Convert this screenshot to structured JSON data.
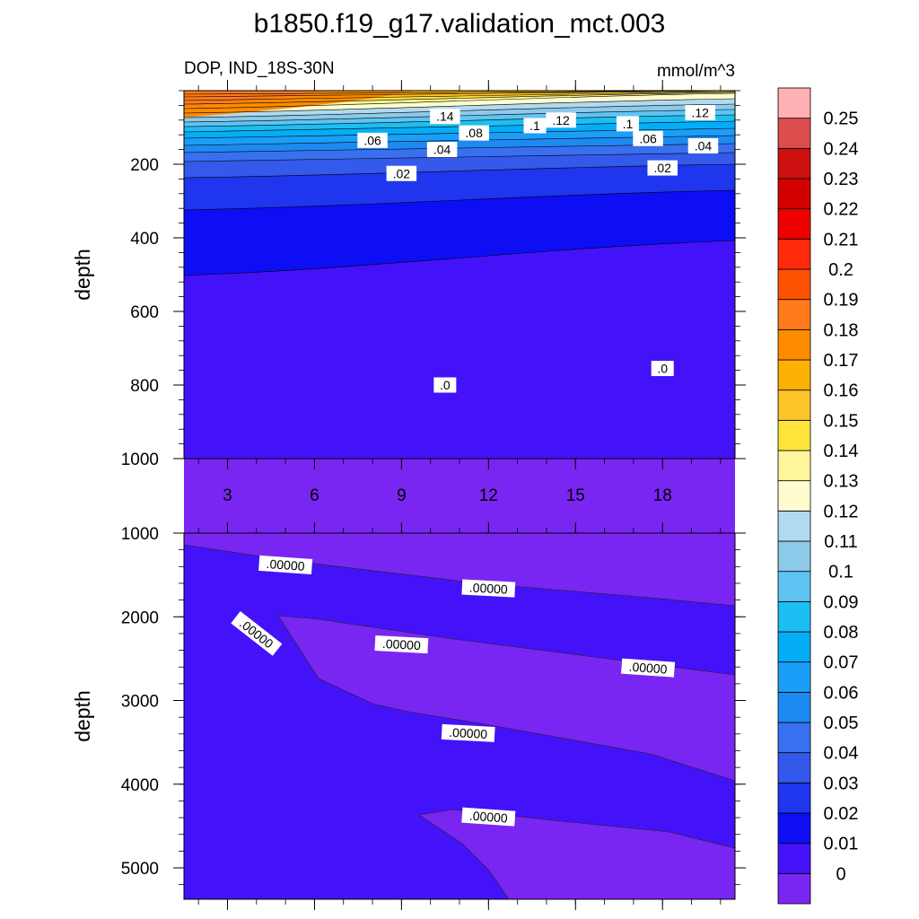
{
  "title": "b1850.f19_g17.validation_mct.003",
  "colorbar": {
    "levels": [
      0,
      0.01,
      0.02,
      0.03,
      0.04,
      0.05,
      0.06,
      0.07,
      0.08,
      0.09,
      0.1,
      0.11,
      0.12,
      0.13,
      0.14,
      0.15,
      0.16,
      0.17,
      0.18,
      0.19,
      0.2,
      0.21,
      0.22,
      0.23,
      0.24,
      0.25
    ],
    "labels": [
      "0",
      "0.01",
      "0.02",
      "0.03",
      "0.04",
      "0.05",
      "0.06",
      "0.07",
      "0.08",
      "0.09",
      "0.1",
      "0.11",
      "0.12",
      "0.13",
      "0.14",
      "0.15",
      "0.16",
      "0.17",
      "0.18",
      "0.19",
      "0.2",
      "0.21",
      "0.22",
      "0.23",
      "0.24",
      "0.25"
    ],
    "colors": [
      "#7a26f2",
      "#4412f8",
      "#0e0ef5",
      "#1f35ee",
      "#3559ea",
      "#3870ef",
      "#1d8af2",
      "#1b9ef8",
      "#05adf7",
      "#1dbef2",
      "#5ec4f3",
      "#8dcaea",
      "#b1daf0",
      "#fffdd0",
      "#fff59a",
      "#ffe43b",
      "#fec52a",
      "#fdb104",
      "#ff8c00",
      "#ff7a1b",
      "#ff5200",
      "#ff2a0a",
      "#ee0000",
      "#d30000",
      "#cc1010",
      "#dc4d4d",
      "#ffb1b4"
    ]
  },
  "chart_data": [
    {
      "type": "contour",
      "panel": "top",
      "left_label": "DOP, IND_18S-30N",
      "right_label": "mmol/m^3",
      "ylabel": "depth",
      "xlabel": "",
      "x_ticks": [
        3,
        6,
        9,
        12,
        15,
        18
      ],
      "x_tick_labels": [
        "3",
        "6",
        "9",
        "12",
        "15",
        "18"
      ],
      "xlim": [
        1.5,
        20.5
      ],
      "y_ticks": [
        200,
        400,
        600,
        800,
        1000
      ],
      "y_tick_labels": [
        "200",
        "400",
        "600",
        "800",
        "1000"
      ],
      "ylim": [
        0,
        1000
      ],
      "y_reversed": true,
      "contour_labels": [
        {
          "text": ".14",
          "x": 10.5,
          "y": 70
        },
        {
          "text": ".12",
          "x": 14.5,
          "y": 80
        },
        {
          "text": ".12",
          "x": 19.3,
          "y": 60
        },
        {
          "text": ".1",
          "x": 13.6,
          "y": 95
        },
        {
          "text": ".1",
          "x": 16.8,
          "y": 90
        },
        {
          "text": ".08",
          "x": 11.5,
          "y": 115
        },
        {
          "text": ".06",
          "x": 8.0,
          "y": 135
        },
        {
          "text": ".06",
          "x": 17.5,
          "y": 130
        },
        {
          "text": ".04",
          "x": 10.4,
          "y": 160
        },
        {
          "text": ".04",
          "x": 19.4,
          "y": 150
        },
        {
          "text": ".02",
          "x": 9.0,
          "y": 225
        },
        {
          "text": ".02",
          "x": 18.0,
          "y": 210
        },
        {
          "text": ".0",
          "x": 10.5,
          "y": 800
        },
        {
          "text": ".0",
          "x": 18.0,
          "y": 755
        }
      ]
    },
    {
      "type": "contour",
      "panel": "bottom",
      "ylabel": "depth",
      "xlim": [
        1.5,
        20.5
      ],
      "y_ticks": [
        1000,
        2000,
        3000,
        4000,
        5000
      ],
      "y_tick_labels": [
        "1000",
        "2000",
        "3000",
        "4000",
        "5000"
      ],
      "ylim": [
        1000,
        5375
      ],
      "y_reversed": true,
      "contour_labels": [
        {
          "text": ".00000",
          "x": 5.0,
          "y": 1380
        },
        {
          "text": ".00000",
          "x": 12.0,
          "y": 1660
        },
        {
          "text": ".00000",
          "x": 4.0,
          "y": 2200
        },
        {
          "text": ".00000",
          "x": 9.0,
          "y": 2330
        },
        {
          "text": ".00000",
          "x": 17.5,
          "y": 2610
        },
        {
          "text": ".00000",
          "x": 11.3,
          "y": 3390
        },
        {
          "text": ".00000",
          "x": 12.0,
          "y": 4390
        }
      ]
    }
  ]
}
